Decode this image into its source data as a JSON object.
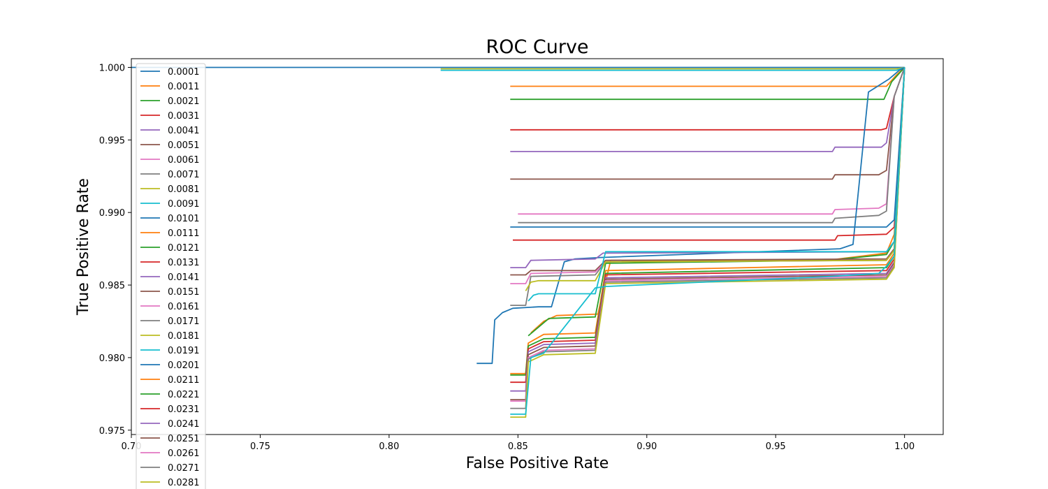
{
  "chart_data": {
    "type": "line",
    "title": "ROC Curve",
    "xlabel": "False Positive Rate",
    "ylabel": "True Positive Rate",
    "xlim": [
      0.7,
      1.015
    ],
    "ylim": [
      0.9747,
      1.0006
    ],
    "xticks": [
      0.7,
      0.75,
      0.8,
      0.85,
      0.9,
      0.95,
      1.0
    ],
    "xtick_labels": [
      "0.70",
      "0.75",
      "0.80",
      "0.85",
      "0.90",
      "0.95",
      "1.00"
    ],
    "yticks": [
      0.975,
      0.98,
      0.985,
      0.99,
      0.995,
      1.0
    ],
    "ytick_labels": [
      "0.975",
      "0.980",
      "0.985",
      "0.990",
      "0.995",
      "1.000"
    ],
    "grid": false,
    "legend_position": "top-left",
    "series": [
      {
        "name": "0.0001",
        "color": "#1f77b4",
        "x": [
          0.7,
          0.827,
          0.997,
          1.0
        ],
        "y": [
          1.0,
          1.0,
          1.0,
          1.0
        ]
      },
      {
        "name": "0.0011",
        "color": "#ff7f0e",
        "x": [
          0.847,
          0.993,
          0.997,
          1.0
        ],
        "y": [
          0.9987,
          0.9987,
          0.9995,
          1.0
        ]
      },
      {
        "name": "0.0021",
        "color": "#2ca02c",
        "x": [
          0.847,
          0.992,
          0.995,
          1.0
        ],
        "y": [
          0.9978,
          0.9978,
          0.999,
          1.0
        ]
      },
      {
        "name": "0.0031",
        "color": "#d62728",
        "x": [
          0.847,
          0.991,
          0.993,
          0.996,
          1.0
        ],
        "y": [
          0.9957,
          0.9957,
          0.9958,
          0.998,
          1.0
        ]
      },
      {
        "name": "0.0041",
        "color": "#9467bd",
        "x": [
          0.847,
          0.972,
          0.973,
          0.991,
          0.993,
          0.996,
          1.0
        ],
        "y": [
          0.9942,
          0.9942,
          0.9945,
          0.9945,
          0.9948,
          0.998,
          1.0
        ]
      },
      {
        "name": "0.0051",
        "color": "#8c564b",
        "x": [
          0.847,
          0.972,
          0.973,
          0.99,
          0.993,
          0.996,
          1.0
        ],
        "y": [
          0.9923,
          0.9923,
          0.9926,
          0.9926,
          0.9929,
          0.998,
          1.0
        ]
      },
      {
        "name": "0.0061",
        "color": "#e377c2",
        "x": [
          0.85,
          0.972,
          0.973,
          0.99,
          0.993,
          0.996,
          1.0
        ],
        "y": [
          0.9899,
          0.9899,
          0.9902,
          0.9903,
          0.9906,
          0.998,
          1.0
        ]
      },
      {
        "name": "0.0071",
        "color": "#7f7f7f",
        "x": [
          0.85,
          0.972,
          0.973,
          0.99,
          0.993,
          0.996,
          1.0
        ],
        "y": [
          0.9893,
          0.9893,
          0.9896,
          0.9898,
          0.9901,
          0.998,
          1.0
        ]
      },
      {
        "name": "0.0081",
        "color": "#bcbd22",
        "x": [
          0.82,
          0.997,
          1.0
        ],
        "y": [
          0.9999,
          0.9999,
          1.0
        ]
      },
      {
        "name": "0.0091",
        "color": "#17becf",
        "x": [
          0.82,
          0.997,
          1.0
        ],
        "y": [
          0.9998,
          0.9998,
          1.0
        ]
      },
      {
        "name": "0.0101",
        "color": "#1f77b4",
        "x": [
          0.834,
          0.84,
          0.841,
          0.844,
          0.848,
          0.858,
          0.863,
          0.868,
          0.872,
          0.882,
          0.975,
          0.98,
          0.986,
          0.994,
          0.998,
          1.0
        ],
        "y": [
          0.9796,
          0.9796,
          0.9826,
          0.9831,
          0.9834,
          0.9835,
          0.9835,
          0.9866,
          0.9868,
          0.9869,
          0.9875,
          0.9878,
          0.9983,
          0.9992,
          0.9998,
          1.0
        ]
      },
      {
        "name": "0.0111",
        "color": "#ff7f0e",
        "x": [
          0.855,
          0.86,
          0.865,
          0.881,
          0.886,
          0.97,
          0.993,
          0.996,
          1.0
        ],
        "y": [
          0.9817,
          0.9825,
          0.9829,
          0.983,
          0.9867,
          0.9867,
          0.9872,
          0.9885,
          1.0
        ]
      },
      {
        "name": "0.0121",
        "color": "#2ca02c",
        "x": [
          0.854,
          0.858,
          0.862,
          0.88,
          0.884,
          0.97,
          0.993,
          0.996,
          1.0
        ],
        "y": [
          0.9815,
          0.9821,
          0.9827,
          0.9828,
          0.9865,
          0.9867,
          0.9871,
          0.988,
          1.0
        ]
      },
      {
        "name": "0.0131",
        "color": "#d62728",
        "x": [
          0.848,
          0.973,
          0.974,
          0.993,
          0.996,
          1.0
        ],
        "y": [
          0.9881,
          0.9881,
          0.9884,
          0.9885,
          0.989,
          1.0
        ]
      },
      {
        "name": "0.0141",
        "color": "#9467bd",
        "x": [
          0.847,
          0.853,
          0.855,
          0.88,
          0.883,
          0.993,
          0.996,
          1.0
        ],
        "y": [
          0.9862,
          0.9862,
          0.9867,
          0.9868,
          0.9872,
          0.9873,
          0.988,
          1.0
        ]
      },
      {
        "name": "0.0151",
        "color": "#8c564b",
        "x": [
          0.847,
          0.853,
          0.855,
          0.88,
          0.884,
          0.993,
          0.996,
          1.0
        ],
        "y": [
          0.9857,
          0.9857,
          0.986,
          0.986,
          0.9867,
          0.9868,
          0.9875,
          1.0
        ]
      },
      {
        "name": "0.0161",
        "color": "#e377c2",
        "x": [
          0.847,
          0.853,
          0.855,
          0.88,
          0.884,
          0.993,
          0.996,
          1.0
        ],
        "y": [
          0.9851,
          0.9851,
          0.9858,
          0.9859,
          0.9866,
          0.9867,
          0.9874,
          1.0
        ]
      },
      {
        "name": "0.0171",
        "color": "#7f7f7f",
        "x": [
          0.847,
          0.853,
          0.855,
          0.88,
          0.884,
          0.993,
          0.996,
          1.0
        ],
        "y": [
          0.9836,
          0.9836,
          0.9856,
          0.9857,
          0.9866,
          0.9867,
          0.9874,
          1.0
        ]
      },
      {
        "name": "0.0181",
        "color": "#bcbd22",
        "x": [
          0.853,
          0.855,
          0.858,
          0.88,
          0.884,
          0.993,
          0.996,
          1.0
        ],
        "y": [
          0.9846,
          0.9852,
          0.9853,
          0.9853,
          0.9866,
          0.9867,
          0.9874,
          1.0
        ]
      },
      {
        "name": "0.0191",
        "color": "#17becf",
        "x": [
          0.854,
          0.856,
          0.858,
          0.88,
          0.884,
          0.993,
          0.996,
          1.0
        ],
        "y": [
          0.9839,
          0.9843,
          0.9844,
          0.9844,
          0.9873,
          0.9873,
          0.988,
          1.0
        ]
      },
      {
        "name": "0.0201",
        "color": "#1f77b4",
        "x": [
          0.847,
          0.993,
          0.996,
          1.0
        ],
        "y": [
          0.989,
          0.989,
          0.9895,
          1.0
        ]
      },
      {
        "name": "0.0211",
        "color": "#ff7f0e",
        "x": [
          0.847,
          0.853,
          0.854,
          0.86,
          0.88,
          0.884,
          0.993,
          0.996,
          1.0
        ],
        "y": [
          0.9789,
          0.9789,
          0.981,
          0.9816,
          0.9817,
          0.986,
          0.9864,
          0.9872,
          1.0
        ]
      },
      {
        "name": "0.0221",
        "color": "#2ca02c",
        "x": [
          0.847,
          0.853,
          0.854,
          0.86,
          0.88,
          0.884,
          0.993,
          0.996,
          1.0
        ],
        "y": [
          0.9788,
          0.9788,
          0.9808,
          0.9813,
          0.9814,
          0.9858,
          0.9862,
          0.987,
          1.0
        ]
      },
      {
        "name": "0.0231",
        "color": "#d62728",
        "x": [
          0.847,
          0.853,
          0.854,
          0.86,
          0.88,
          0.884,
          0.993,
          0.996,
          1.0
        ],
        "y": [
          0.9783,
          0.9783,
          0.9806,
          0.9811,
          0.9812,
          0.9857,
          0.986,
          0.9868,
          1.0
        ]
      },
      {
        "name": "0.0241",
        "color": "#9467bd",
        "x": [
          0.847,
          0.853,
          0.854,
          0.86,
          0.88,
          0.884,
          0.993,
          0.996,
          1.0
        ],
        "y": [
          0.9777,
          0.9777,
          0.9804,
          0.9809,
          0.981,
          0.9855,
          0.9858,
          0.9866,
          1.0
        ]
      },
      {
        "name": "0.0251",
        "color": "#8c564b",
        "x": [
          0.847,
          0.853,
          0.854,
          0.86,
          0.88,
          0.884,
          0.993,
          0.996,
          1.0
        ],
        "y": [
          0.9771,
          0.9771,
          0.9802,
          0.9807,
          0.9808,
          0.9854,
          0.9857,
          0.9865,
          1.0
        ]
      },
      {
        "name": "0.0261",
        "color": "#e377c2",
        "x": [
          0.847,
          0.853,
          0.854,
          0.86,
          0.88,
          0.884,
          0.993,
          0.996,
          1.0
        ],
        "y": [
          0.977,
          0.977,
          0.98,
          0.9805,
          0.9806,
          0.9853,
          0.9856,
          0.9864,
          1.0
        ]
      },
      {
        "name": "0.0271",
        "color": "#7f7f7f",
        "x": [
          0.847,
          0.853,
          0.854,
          0.86,
          0.88,
          0.884,
          0.993,
          0.996,
          1.0
        ],
        "y": [
          0.9765,
          0.9765,
          0.9799,
          0.9804,
          0.9805,
          0.9852,
          0.9855,
          0.9863,
          1.0
        ]
      },
      {
        "name": "0.0281",
        "color": "#bcbd22",
        "x": [
          0.847,
          0.853,
          0.854,
          0.86,
          0.88,
          0.884,
          0.993,
          0.996,
          1.0
        ],
        "y": [
          0.9759,
          0.9759,
          0.9797,
          0.9802,
          0.9803,
          0.9851,
          0.9854,
          0.9862,
          1.0
        ]
      },
      {
        "name": "",
        "color": "#17becf",
        "x": [
          0.847,
          0.853,
          0.855,
          0.86,
          0.88,
          0.884,
          0.972,
          0.99,
          0.993,
          0.996,
          1.0
        ],
        "y": [
          0.9761,
          0.9761,
          0.98,
          0.9803,
          0.9848,
          0.9849,
          0.9856,
          0.9858,
          0.9863,
          0.987,
          1.0
        ]
      }
    ]
  }
}
